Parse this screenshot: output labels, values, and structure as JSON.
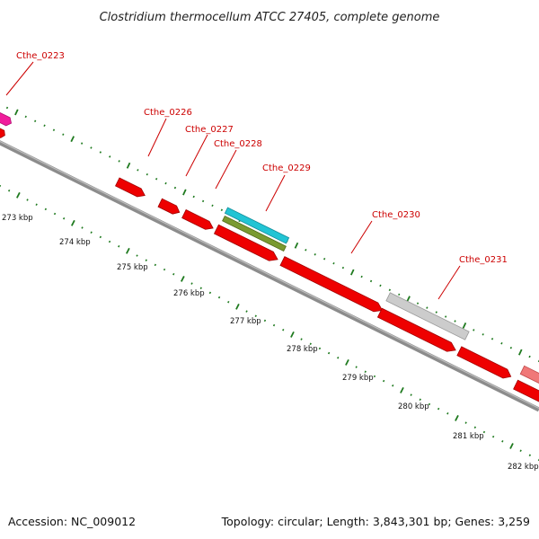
{
  "title": "Clostridium thermocellum ATCC 27405, complete genome",
  "footer": {
    "accession": "Accession: NC_009012",
    "topology": "Topology: circular; Length: 3,843,301 bp; Genes: 3,259"
  },
  "colors": {
    "backbone": "#8c8c8c",
    "scale_ticks": "#1f7a1f",
    "gene_label": "#cc0000",
    "leader_line": "#cc0000",
    "gene_red": "#ee0000",
    "gene_gray": "#cccccc",
    "gene_cyan": "#22c4d4",
    "gene_olive": "#7a9a30",
    "gene_pink": "#f01c9c",
    "gene_light_red": "#f07878"
  },
  "gene_labels": [
    "Cthe_0223",
    "Cthe_0226",
    "Cthe_0227",
    "Cthe_0228",
    "Cthe_0229",
    "Cthe_0230",
    "Cthe_0231"
  ],
  "kbp_labels": [
    "273 kbp",
    "274 kbp",
    "275 kbp",
    "276 kbp",
    "277 kbp",
    "278 kbp",
    "279 kbp",
    "280 kbp",
    "281 kbp",
    "282 kbp"
  ]
}
